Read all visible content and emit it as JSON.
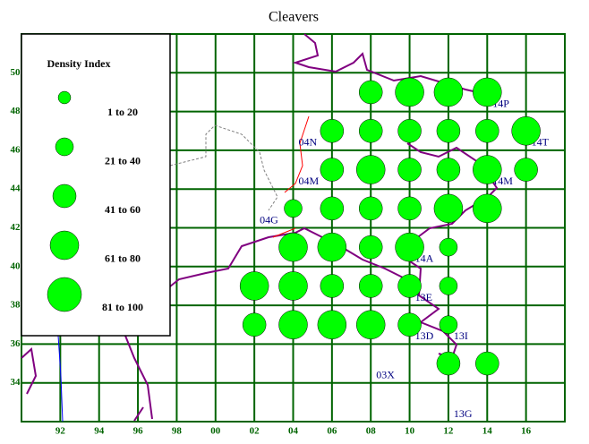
{
  "chart_data": {
    "type": "grid-map",
    "title": "Cleavers",
    "legend_title": "Density Index",
    "legend": [
      "1 to 20",
      "21 to 40",
      "41 to 60",
      "61 to 80",
      "81 to 100"
    ],
    "color": "#00ff00",
    "grid_color": "#006400",
    "xlim": [
      -10,
      18
    ],
    "ylim": [
      32,
      52
    ],
    "xticks": [
      {
        "value": -8,
        "label": "92"
      },
      {
        "value": -6,
        "label": "94"
      },
      {
        "value": -4,
        "label": "96"
      },
      {
        "value": -2,
        "label": "98"
      },
      {
        "value": 0,
        "label": "00"
      },
      {
        "value": 2,
        "label": "02"
      },
      {
        "value": 4,
        "label": "04"
      },
      {
        "value": 6,
        "label": "06"
      },
      {
        "value": 8,
        "label": "08"
      },
      10,
      12,
      14,
      16
    ],
    "yticks": [
      34,
      36,
      38,
      40,
      42,
      44,
      46,
      48,
      50
    ],
    "squares": [
      {
        "text": "14P",
        "x": 14,
        "y": 48
      },
      {
        "text": "14T",
        "x": 16,
        "y": 46
      },
      {
        "text": "14M",
        "x": 14,
        "y": 44
      },
      {
        "text": "04N",
        "x": 4,
        "y": 46
      },
      {
        "text": "04M",
        "x": 4,
        "y": 44
      },
      {
        "text": "04G",
        "x": 2,
        "y": 42
      },
      {
        "text": "14A",
        "x": 10,
        "y": 40
      },
      {
        "text": "13E",
        "x": 10,
        "y": 38
      },
      {
        "text": "13D",
        "x": 10,
        "y": 36
      },
      {
        "text": "13I",
        "x": 12,
        "y": 36
      },
      {
        "text": "03X",
        "x": 8,
        "y": 34
      },
      {
        "text": "13G",
        "x": 12,
        "y": 32
      }
    ],
    "circles": [
      [
        7,
        49,
        3
      ],
      [
        9,
        49,
        4
      ],
      [
        11,
        49,
        4
      ],
      [
        13,
        49,
        4
      ],
      [
        5,
        47,
        3
      ],
      [
        7,
        47,
        3
      ],
      [
        9,
        47,
        3
      ],
      [
        11,
        47,
        3
      ],
      [
        13,
        47,
        3
      ],
      [
        15,
        47,
        4
      ],
      [
        5,
        45,
        3
      ],
      [
        7,
        45,
        4
      ],
      [
        9,
        45,
        3
      ],
      [
        11,
        45,
        3
      ],
      [
        13,
        45,
        4
      ],
      [
        15,
        45,
        3
      ],
      [
        3,
        43,
        2
      ],
      [
        5,
        43,
        3
      ],
      [
        7,
        43,
        3
      ],
      [
        9,
        43,
        3
      ],
      [
        11,
        43,
        4
      ],
      [
        13,
        43,
        4
      ],
      [
        3,
        41,
        4
      ],
      [
        5,
        41,
        4
      ],
      [
        7,
        41,
        3
      ],
      [
        9,
        41,
        4
      ],
      [
        11,
        41,
        2
      ],
      [
        1,
        39,
        4
      ],
      [
        3,
        39,
        4
      ],
      [
        5,
        39,
        3
      ],
      [
        7,
        39,
        3
      ],
      [
        9,
        39,
        3
      ],
      [
        11,
        39,
        2
      ],
      [
        1,
        37,
        3
      ],
      [
        3,
        37,
        4
      ],
      [
        5,
        37,
        4
      ],
      [
        7,
        37,
        4
      ],
      [
        9,
        37,
        3
      ],
      [
        11,
        37,
        2
      ],
      [
        11,
        35,
        3
      ],
      [
        13,
        35,
        3
      ]
    ]
  }
}
